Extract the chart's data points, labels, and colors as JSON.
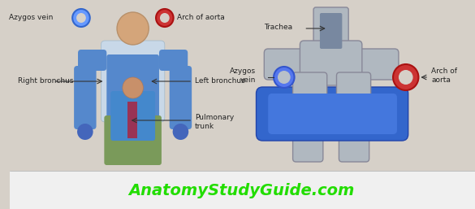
{
  "bg_color": "#d6d0c8",
  "bottom_bg": "#e8e8e8",
  "website_text": "AnatomyStudyGuide.com",
  "website_color": "#22dd00",
  "website_fontsize": 14,
  "azygos_vein_top_label": "Azygos vein",
  "arch_of_aorta_top_label": "Arch of aorta",
  "right_bronchus_label": "Right bronchus",
  "left_bronchus_label": "Left bronchus",
  "pulmonary_trunk_label": "Pulmonary\ntrunk",
  "trachea_label": "Trachea",
  "azygos_vein_right_label": "Azygos\nvein",
  "arch_of_aorta_right_label": "Arch of\naorta",
  "label_fontsize": 6.5,
  "annotation_color": "#222222",
  "azygos_ring_color_fill": "#ffffff",
  "azygos_ring_inner": "#4488ff",
  "aorta_ring_color_fill": "#ffffff",
  "aorta_ring_inner": "#cc2222",
  "body_bg": "#c8d0d8"
}
